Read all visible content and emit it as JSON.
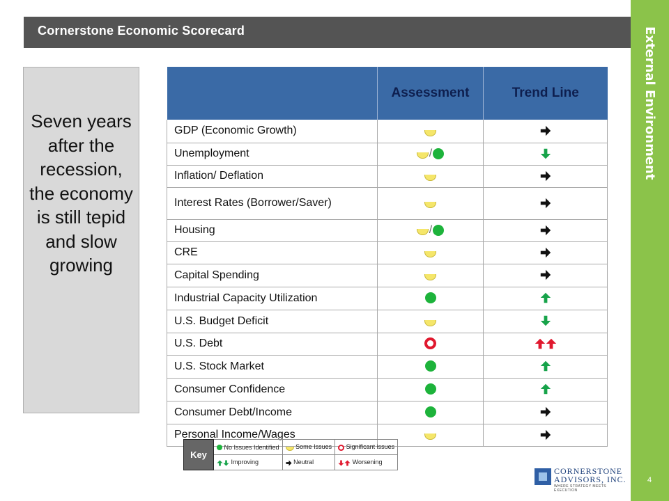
{
  "header": {
    "title": "Cornerstone Economic Scorecard"
  },
  "side": {
    "label": "External Environment",
    "page_number": "4"
  },
  "summary": {
    "text": "Seven years after the recession, the economy is still tepid and slow growing"
  },
  "table": {
    "columns": [
      "",
      "Assessment",
      "Trend Line"
    ],
    "rows": [
      {
        "indicator": "GDP (Economic Growth)",
        "assessment": [
          "some-issues"
        ],
        "trend": [
          "right"
        ]
      },
      {
        "indicator": "Unemployment",
        "assessment": [
          "some-issues",
          "no-issues"
        ],
        "trend": [
          "down"
        ]
      },
      {
        "indicator": "Inflation/ Deflation",
        "assessment": [
          "some-issues"
        ],
        "trend": [
          "right"
        ]
      },
      {
        "indicator": "Interest Rates (Borrower/Saver)",
        "assessment": [
          "some-issues"
        ],
        "trend": [
          "right"
        ]
      },
      {
        "indicator": "Housing",
        "assessment": [
          "some-issues",
          "no-issues"
        ],
        "trend": [
          "right"
        ]
      },
      {
        "indicator": "CRE",
        "assessment": [
          "some-issues"
        ],
        "trend": [
          "right"
        ]
      },
      {
        "indicator": "Capital Spending",
        "assessment": [
          "some-issues"
        ],
        "trend": [
          "right"
        ]
      },
      {
        "indicator": "Industrial Capacity Utilization",
        "assessment": [
          "no-issues"
        ],
        "trend": [
          "up"
        ]
      },
      {
        "indicator": "U.S. Budget Deficit",
        "assessment": [
          "some-issues"
        ],
        "trend": [
          "down"
        ]
      },
      {
        "indicator": "U.S. Debt",
        "assessment": [
          "significant-issues"
        ],
        "trend": [
          "up-red",
          "up-red"
        ]
      },
      {
        "indicator": "U.S. Stock Market",
        "assessment": [
          "no-issues"
        ],
        "trend": [
          "up"
        ]
      },
      {
        "indicator": "Consumer Confidence",
        "assessment": [
          "no-issues"
        ],
        "trend": [
          "up"
        ]
      },
      {
        "indicator": "Consumer Debt/Income",
        "assessment": [
          "no-issues"
        ],
        "trend": [
          "right"
        ]
      },
      {
        "indicator": "Personal Income/Wages",
        "assessment": [
          "some-issues"
        ],
        "trend": [
          "right"
        ]
      }
    ]
  },
  "key": {
    "label": "Key",
    "no_issues": "No Issues Identified",
    "some_issues": "Some Issues",
    "significant_issues": "Significant issues",
    "improving": "Improving",
    "neutral": "Neutral",
    "worsening": "Worsening"
  },
  "logo": {
    "line1": "CORNERSTONE",
    "line2": "ADVISORS, INC.",
    "tagline": "WHERE STRATEGY MEETS EXECUTION"
  },
  "colors": {
    "header_bg": "#545454",
    "side_band": "#8bc34a",
    "table_header_bg": "#3a6aa6",
    "table_header_text": "#0e1f4f",
    "status_green": "#1db33b",
    "status_yellow": "#f5e66a",
    "status_red": "#e0182e",
    "arrow_green": "#17a34a"
  }
}
